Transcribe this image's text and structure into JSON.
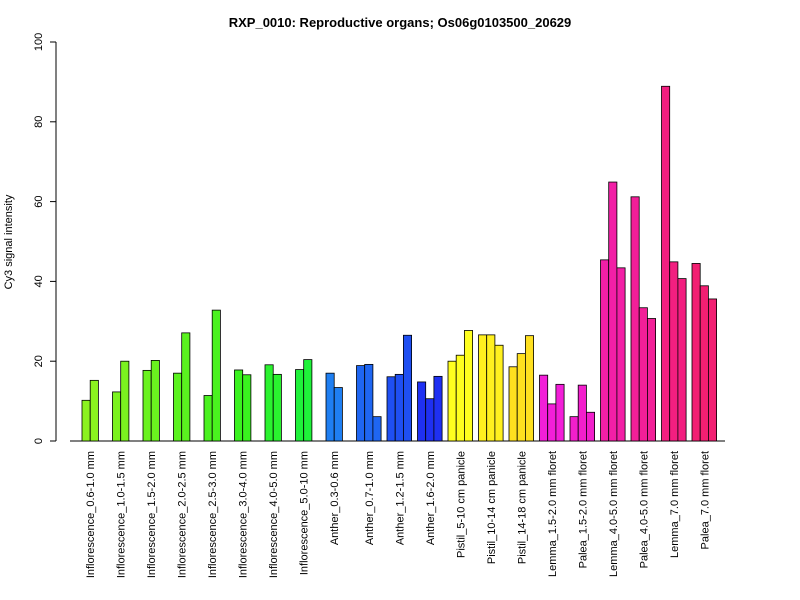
{
  "chart_data": {
    "type": "bar",
    "title": "RXP_0010: Reproductive organs; Os06g0103500_20629",
    "xlabel": "",
    "ylabel": "Cy3 signal intensity",
    "ylim": [
      0,
      100
    ],
    "yticks": [
      0,
      20,
      40,
      60,
      80,
      100
    ],
    "grid": false,
    "legend": "none",
    "groups": [
      {
        "label": "Inflorescence_0.6-1.0 mm",
        "color": "#8BF21F",
        "values": [
          10.2,
          15.2
        ]
      },
      {
        "label": "Inflorescence_1.0-1.5 mm",
        "color": "#7BF21F",
        "values": [
          12.3,
          20.0
        ]
      },
      {
        "label": "Inflorescence_1.5-2.0 mm",
        "color": "#6AF21F",
        "values": [
          17.7,
          20.2
        ]
      },
      {
        "label": "Inflorescence_2.0-2.5 mm",
        "color": "#5AF21F",
        "values": [
          17.0,
          27.1
        ]
      },
      {
        "label": "Inflorescence_2.5-3.0 mm",
        "color": "#4AF21F",
        "values": [
          11.4,
          32.8
        ]
      },
      {
        "label": "Inflorescence_3.0-4.0 mm",
        "color": "#3AF21F",
        "values": [
          17.8,
          16.6
        ]
      },
      {
        "label": "Inflorescence_4.0-5.0 mm",
        "color": "#2AF22F",
        "values": [
          19.1,
          16.7
        ]
      },
      {
        "label": "Inflorescence_5.0-10 mm",
        "color": "#1FF23A",
        "values": [
          17.9,
          20.4
        ]
      },
      {
        "label": "Anther_0.3-0.6 mm",
        "color": "#1F7FF2",
        "values": [
          17.0,
          13.4
        ]
      },
      {
        "label": "Anther_0.7-1.0 mm",
        "color": "#1F66F2",
        "values": [
          18.9,
          19.2,
          6.1
        ]
      },
      {
        "label": "Anther_1.2-1.5 mm",
        "color": "#1F4FF2",
        "values": [
          16.1,
          16.7,
          26.5
        ]
      },
      {
        "label": "Anther_1.6-2.0 mm",
        "color": "#1F30F2",
        "values": [
          14.8,
          10.6,
          16.2
        ]
      },
      {
        "label": "Pistil_5-10 cm panicle",
        "color": "#FFFF1F",
        "values": [
          20.0,
          21.5,
          27.7
        ]
      },
      {
        "label": "Pistil_10-14 cm panicle",
        "color": "#FFF01F",
        "values": [
          26.6,
          26.6,
          24.0
        ]
      },
      {
        "label": "Pistil_14-18 cm panicle",
        "color": "#FFE01F",
        "values": [
          18.6,
          21.9,
          26.4
        ]
      },
      {
        "label": "Lemma_1.5-2.0 mm floret",
        "color": "#F21FD8",
        "values": [
          16.5,
          9.3,
          14.2
        ]
      },
      {
        "label": "Palea_1.5-2.0 mm floret",
        "color": "#F21FCC",
        "values": [
          6.1,
          14.0,
          7.2
        ]
      },
      {
        "label": "Lemma_4.0-5.0 mm floret",
        "color": "#F21FA6",
        "values": [
          45.4,
          64.9,
          43.4
        ]
      },
      {
        "label": "Palea_4.0-5.0 mm floret",
        "color": "#F21F98",
        "values": [
          61.2,
          33.4,
          30.7
        ]
      },
      {
        "label": "Lemma_7.0 mm floret",
        "color": "#F21F80",
        "values": [
          88.9,
          44.9,
          40.7
        ]
      },
      {
        "label": "Palea_7.0 mm floret",
        "color": "#F21F72",
        "values": [
          44.5,
          38.9,
          35.6
        ]
      }
    ]
  }
}
